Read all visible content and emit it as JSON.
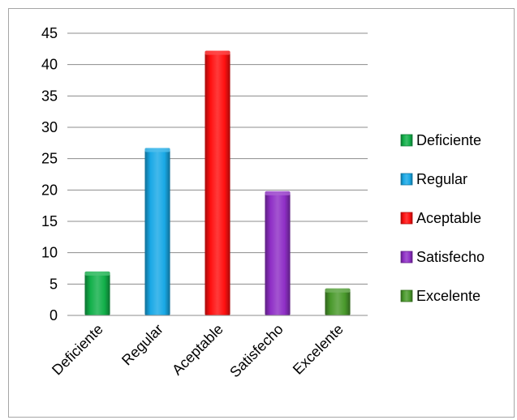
{
  "chart_data": {
    "type": "bar",
    "title": "",
    "xlabel": "",
    "ylabel": "",
    "categories": [
      "Deficiente",
      "Regular",
      "Aceptable",
      "Satisfecho",
      "Excelente"
    ],
    "values": [
      7,
      26.7,
      42.2,
      19.8,
      4.3
    ],
    "colors": [
      "#12b04a",
      "#19a9e6",
      "#ff1010",
      "#8f2fc6",
      "#4a9a2c"
    ],
    "ylim": [
      0,
      45
    ],
    "yticks": [
      0,
      5,
      10,
      15,
      20,
      25,
      30,
      35,
      40,
      45
    ],
    "grid": true,
    "legend": {
      "placement": "right",
      "entries": [
        "Deficiente",
        "Regular",
        "Aceptable",
        "Satisfecho",
        "Excelente"
      ]
    }
  }
}
